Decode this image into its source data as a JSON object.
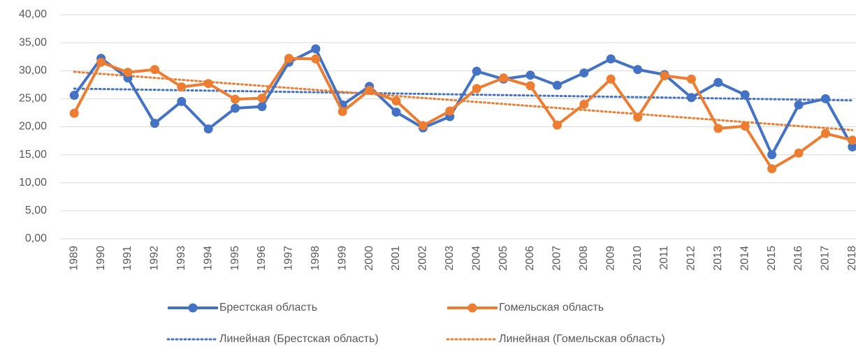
{
  "chart_data": {
    "type": "line",
    "categories": [
      "1989",
      "1990",
      "1991",
      "1992",
      "1993",
      "1994",
      "1995",
      "1996",
      "1997",
      "1998",
      "1999",
      "2000",
      "2001",
      "2002",
      "2003",
      "2004",
      "2005",
      "2006",
      "2007",
      "2008",
      "2009",
      "2010",
      "2011",
      "2012",
      "2013",
      "2014",
      "2015",
      "2016",
      "2017",
      "2018"
    ],
    "series": [
      {
        "name": "Брестская область",
        "color": "#4472c4",
        "values": [
          25.6,
          32.2,
          28.7,
          20.6,
          24.5,
          19.6,
          23.3,
          23.6,
          31.5,
          33.9,
          23.9,
          27.2,
          22.6,
          19.8,
          21.8,
          29.9,
          28.5,
          29.2,
          27.4,
          29.6,
          32.1,
          30.2,
          29.3,
          25.2,
          27.9,
          25.7,
          15.0,
          23.9,
          25.0,
          16.4
        ]
      },
      {
        "name": "Гомельская область",
        "color": "#ed7d31",
        "values": [
          22.4,
          31.5,
          29.7,
          30.2,
          27.1,
          27.7,
          24.9,
          25.1,
          32.2,
          32.1,
          22.7,
          26.5,
          24.6,
          20.2,
          22.8,
          26.8,
          28.7,
          27.3,
          20.3,
          24.0,
          28.5,
          21.7,
          29.1,
          28.5,
          19.7,
          20.1,
          12.5,
          15.3,
          18.8,
          17.6
        ]
      }
    ],
    "trendlines": [
      {
        "name": "Линейная (Брестская область)",
        "color": "#4472c4",
        "start": 26.8,
        "end": 24.7
      },
      {
        "name": "Линейная (Гомельская область)",
        "color": "#ed7d31",
        "start": 29.8,
        "end": 19.4
      }
    ],
    "ylim": [
      0,
      40
    ],
    "yticks": [
      {
        "value": 0,
        "label": "0,00"
      },
      {
        "value": 5,
        "label": "5,00"
      },
      {
        "value": 10,
        "label": "10,00"
      },
      {
        "value": 15,
        "label": "15,00"
      },
      {
        "value": 20,
        "label": "20,00"
      },
      {
        "value": 25,
        "label": "25,00"
      },
      {
        "value": 30,
        "label": "30,00"
      },
      {
        "value": 35,
        "label": "35,00"
      },
      {
        "value": 40,
        "label": "40,00"
      }
    ],
    "grid": true
  }
}
